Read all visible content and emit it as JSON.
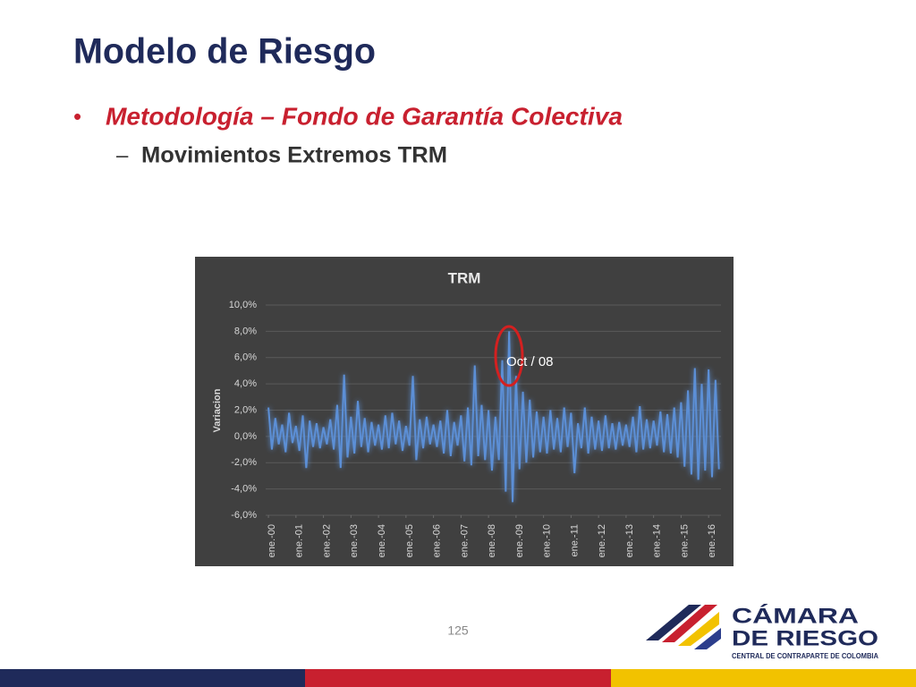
{
  "slide": {
    "title": "Modelo de Riesgo",
    "bullet": "Metodología – Fondo de Garantía Colectiva",
    "sub_bullet": "Movimientos Extremos TRM",
    "page_number": "125",
    "logo": {
      "line1": "CÁMARA",
      "line2": "DE RIESGO",
      "tagline": "CENTRAL DE CONTRAPARTE DE COLOMBIA"
    }
  },
  "chart_data": {
    "type": "line",
    "title": "TRM",
    "y_label": "Variacion",
    "annotation": "Oct / 08",
    "color": "#5b8fd6",
    "grid": true,
    "xlim": [
      1999.9,
      2016.45
    ],
    "xticks": [
      {
        "value": 2000,
        "label": "ene.-00"
      },
      {
        "value": 2001,
        "label": "ene.-01"
      },
      {
        "value": 2002,
        "label": "ene.-02"
      },
      {
        "value": 2003,
        "label": "ene.-03"
      },
      {
        "value": 2004,
        "label": "ene.-04"
      },
      {
        "value": 2005,
        "label": "ene.-05"
      },
      {
        "value": 2006,
        "label": "ene.-06"
      },
      {
        "value": 2007,
        "label": "ene.-07"
      },
      {
        "value": 2008,
        "label": "ene.-08"
      },
      {
        "value": 2009,
        "label": "ene.-09"
      },
      {
        "value": 2010,
        "label": "ene.-10"
      },
      {
        "value": 2011,
        "label": "ene.-11"
      },
      {
        "value": 2012,
        "label": "ene.-12"
      },
      {
        "value": 2013,
        "label": "ene.-13"
      },
      {
        "value": 2014,
        "label": "ene.-14"
      },
      {
        "value": 2015,
        "label": "ene.-15"
      },
      {
        "value": 2016,
        "label": "ene.-16"
      }
    ],
    "ylim": [
      -6,
      10
    ],
    "yticks": [
      {
        "value": -6,
        "label": "-6,0%"
      },
      {
        "value": -4,
        "label": "-4,0%"
      },
      {
        "value": -2,
        "label": "-2,0%"
      },
      {
        "value": 0,
        "label": "0,0%"
      },
      {
        "value": 2,
        "label": "2,0%"
      },
      {
        "value": 4,
        "label": "4,0%"
      },
      {
        "value": 6,
        "label": "6,0%"
      },
      {
        "value": 8,
        "label": "8,0%"
      },
      {
        "value": 10,
        "label": "10,0%"
      }
    ],
    "x": [
      2000,
      2000.125,
      2000.25,
      2000.375,
      2000.5,
      2000.625,
      2000.75,
      2000.875,
      2001,
      2001.125,
      2001.25,
      2001.375,
      2001.5,
      2001.625,
      2001.75,
      2001.875,
      2002,
      2002.125,
      2002.25,
      2002.375,
      2002.5,
      2002.625,
      2002.75,
      2002.875,
      2003,
      2003.125,
      2003.25,
      2003.375,
      2003.5,
      2003.625,
      2003.75,
      2003.875,
      2004,
      2004.125,
      2004.25,
      2004.375,
      2004.5,
      2004.625,
      2004.75,
      2004.875,
      2005,
      2005.125,
      2005.25,
      2005.375,
      2005.5,
      2005.625,
      2005.75,
      2005.875,
      2006,
      2006.125,
      2006.25,
      2006.375,
      2006.5,
      2006.625,
      2006.75,
      2006.875,
      2007,
      2007.125,
      2007.25,
      2007.375,
      2007.5,
      2007.625,
      2007.75,
      2007.875,
      2008,
      2008.125,
      2008.25,
      2008.375,
      2008.5,
      2008.625,
      2008.75,
      2008.875,
      2009,
      2009.125,
      2009.25,
      2009.375,
      2009.5,
      2009.625,
      2009.75,
      2009.875,
      2010,
      2010.125,
      2010.25,
      2010.375,
      2010.5,
      2010.625,
      2010.75,
      2010.875,
      2011,
      2011.125,
      2011.25,
      2011.375,
      2011.5,
      2011.625,
      2011.75,
      2011.875,
      2012,
      2012.125,
      2012.25,
      2012.375,
      2012.5,
      2012.625,
      2012.75,
      2012.875,
      2013,
      2013.125,
      2013.25,
      2013.375,
      2013.5,
      2013.625,
      2013.75,
      2013.875,
      2014,
      2014.125,
      2014.25,
      2014.375,
      2014.5,
      2014.625,
      2014.75,
      2014.875,
      2015,
      2015.125,
      2015.25,
      2015.375,
      2015.5,
      2015.625,
      2015.75,
      2015.875,
      2016,
      2016.125,
      2016.25,
      2016.375
    ],
    "values": [
      2.2,
      -1.0,
      1.4,
      -0.6,
      0.9,
      -1.2,
      1.8,
      -0.5,
      0.8,
      -1.1,
      1.6,
      -2.4,
      1.2,
      -0.8,
      1.0,
      -0.9,
      0.7,
      -0.6,
      1.3,
      -1.0,
      2.4,
      -2.4,
      4.7,
      -1.6,
      1.5,
      -1.3,
      2.7,
      -0.8,
      1.4,
      -1.2,
      1.1,
      -0.7,
      0.9,
      -1.0,
      1.6,
      -0.9,
      1.8,
      -0.6,
      1.2,
      -1.1,
      0.8,
      -0.7,
      4.6,
      -1.8,
      1.3,
      -0.9,
      1.5,
      -0.6,
      0.9,
      -0.8,
      1.2,
      -1.3,
      2.0,
      -1.5,
      1.1,
      -0.7,
      1.6,
      -1.9,
      2.2,
      -2.2,
      5.4,
      -1.5,
      2.4,
      -1.8,
      2.0,
      -2.6,
      1.5,
      -1.8,
      5.8,
      -4.2,
      8.0,
      -5.0,
      4.6,
      -2.5,
      3.4,
      -2.0,
      2.8,
      -1.6,
      1.9,
      -1.2,
      1.5,
      -1.3,
      2.0,
      -1.0,
      1.4,
      -1.2,
      2.2,
      -0.8,
      1.8,
      -2.8,
      1.0,
      -0.9,
      2.2,
      -1.3,
      1.5,
      -1.0,
      1.2,
      -1.1,
      1.6,
      -0.9,
      1.0,
      -1.0,
      1.1,
      -0.7,
      0.9,
      -0.8,
      1.5,
      -1.2,
      2.3,
      -1.0,
      1.3,
      -0.9,
      1.2,
      -0.7,
      1.9,
      -1.2,
      1.7,
      -1.3,
      2.2,
      -1.6,
      2.6,
      -2.3,
      3.5,
      -2.9,
      5.2,
      -3.3,
      4.0,
      -2.6,
      5.1,
      -3.1,
      4.3,
      -2.5
    ]
  }
}
